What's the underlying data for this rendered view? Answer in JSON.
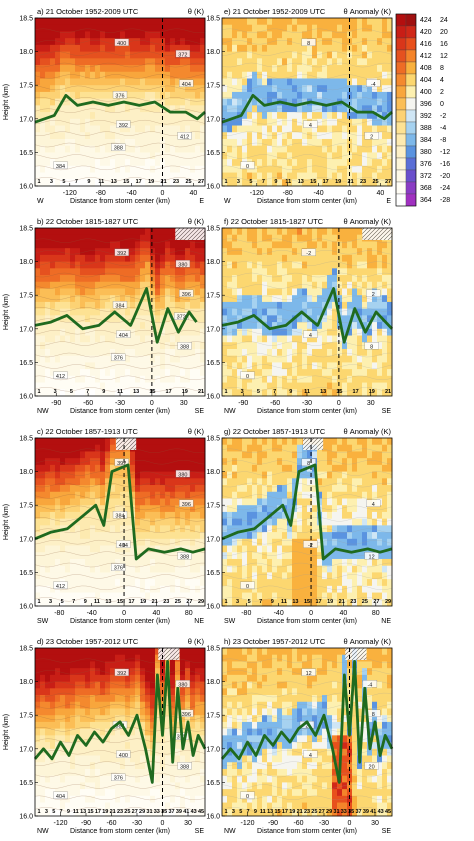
{
  "colorbar": {
    "left_values": [
      424,
      420,
      416,
      412,
      408,
      404,
      400,
      396,
      392,
      388,
      384,
      380,
      376,
      372,
      368,
      364
    ],
    "right_values": [
      24,
      20,
      16,
      12,
      8,
      4,
      2,
      0,
      -2,
      -4,
      -8,
      -12,
      -16,
      -20,
      -24,
      -28
    ],
    "colors": [
      "#b30f0f",
      "#c81e16",
      "#d9361a",
      "#e5511f",
      "#ee6c25",
      "#f4892e",
      "#f8a63c",
      "#fbbe56",
      "#fcd274",
      "#fde293",
      "#fdeab0",
      "#fdf0c6",
      "#fdf5d8",
      "#fef9e7",
      "#fffdf5",
      "#ffffff"
    ],
    "anomaly_colors": [
      "#a01010",
      "#d02818",
      "#e8501c",
      "#f4842a",
      "#f9b13e",
      "#fcd770",
      "#fdf0b0",
      "#f5f5f0",
      "#cfe6f5",
      "#a6d2f0",
      "#7db8ea",
      "#5a93e0",
      "#5a6ed6",
      "#6a4fcc",
      "#8a3cc4",
      "#a030c0"
    ]
  },
  "panels": [
    {
      "id": "a",
      "title": "a) 21 October 1952-2009 UTC",
      "var": "θ (K)",
      "kind": "theta",
      "left_dir": "W",
      "right_dir": "E",
      "xlabel": "Distance from storm center (km)",
      "xticks": [
        -120,
        -80,
        -40,
        0,
        40
      ],
      "xlim": [
        -165,
        55
      ],
      "ylabel": "Height (km)",
      "yticks": [
        "16.0",
        "16.5",
        "17.0",
        "17.5",
        "18.0",
        "18.5"
      ],
      "center_x": 0,
      "bottom_labels": [
        "1",
        "3",
        "5",
        "7",
        "9",
        "11",
        "13",
        "15",
        "17",
        "19",
        "21",
        "23",
        "25",
        "27"
      ],
      "tropopause": [
        [
          -165,
          16.95
        ],
        [
          -140,
          17.05
        ],
        [
          -125,
          17.35
        ],
        [
          -110,
          17.2
        ],
        [
          -90,
          17.25
        ],
        [
          -70,
          17.2
        ],
        [
          -50,
          17.25
        ],
        [
          -30,
          17.2
        ],
        [
          -10,
          17.25
        ],
        [
          10,
          17.1
        ],
        [
          30,
          17.1
        ],
        [
          45,
          17.0
        ],
        [
          55,
          17.1
        ]
      ],
      "hatch": [],
      "contour_labels": [
        "384",
        "392",
        "404",
        "400",
        "412",
        "376",
        "372",
        "388"
      ]
    },
    {
      "id": "e",
      "title": "e) 21 October 1952-2009 UTC",
      "var": "θ Anomaly (K)",
      "kind": "anom",
      "left_dir": "W",
      "right_dir": "E",
      "xlabel": "Distance from storm center (km)",
      "xticks": [
        -120,
        -80,
        -40,
        0,
        40
      ],
      "xlim": [
        -165,
        55
      ],
      "ylabel": "",
      "yticks": [
        "16.0",
        "16.5",
        "17.0",
        "17.5",
        "18.0",
        "18.5"
      ],
      "center_x": 0,
      "bottom_labels": [
        "1",
        "3",
        "5",
        "7",
        "9",
        "11",
        "13",
        "15",
        "17",
        "19",
        "21",
        "23",
        "25",
        "27"
      ],
      "tropopause": [
        [
          -165,
          16.95
        ],
        [
          -140,
          17.05
        ],
        [
          -125,
          17.35
        ],
        [
          -110,
          17.2
        ],
        [
          -90,
          17.25
        ],
        [
          -70,
          17.2
        ],
        [
          -50,
          17.25
        ],
        [
          -30,
          17.2
        ],
        [
          -10,
          17.25
        ],
        [
          10,
          17.1
        ],
        [
          30,
          17.1
        ],
        [
          45,
          17.0
        ],
        [
          55,
          17.1
        ]
      ],
      "hatch": [],
      "contour_labels": [
        "0",
        "4",
        "-4",
        "8",
        "2"
      ]
    },
    {
      "id": "b",
      "title": "b) 22 October 1815-1827 UTC",
      "var": "θ (K)",
      "kind": "theta",
      "left_dir": "NW",
      "right_dir": "SE",
      "xlabel": "Distance from storm center (km)",
      "xticks": [
        -90,
        -60,
        -30,
        0,
        30
      ],
      "xlim": [
        -110,
        50
      ],
      "ylabel": "Height (km)",
      "yticks": [
        "16.0",
        "16.5",
        "17.0",
        "17.5",
        "18.0",
        "18.5"
      ],
      "center_x": 0,
      "bottom_labels": [
        "1",
        "3",
        "5",
        "7",
        "9",
        "11",
        "13",
        "15",
        "17",
        "19",
        "21"
      ],
      "tropopause": [
        [
          -110,
          17.05
        ],
        [
          -95,
          17.1
        ],
        [
          -80,
          17.2
        ],
        [
          -65,
          17.0
        ],
        [
          -50,
          17.05
        ],
        [
          -35,
          17.25
        ],
        [
          -20,
          17.05
        ],
        [
          -5,
          17.6
        ],
        [
          5,
          16.8
        ],
        [
          15,
          17.3
        ],
        [
          25,
          16.95
        ],
        [
          35,
          17.25
        ],
        [
          42,
          17.1
        ]
      ],
      "hatch": [
        [
          22,
          50
        ]
      ],
      "contour_labels": [
        "412",
        "404",
        "396",
        "392",
        "388",
        "384",
        "380",
        "376",
        "372"
      ]
    },
    {
      "id": "f",
      "title": "f) 22 October 1815-1827 UTC",
      "var": "θ Anomaly (K)",
      "kind": "anom",
      "left_dir": "NW",
      "right_dir": "SE",
      "xlabel": "Distance from storm center (km)",
      "xticks": [
        -90,
        -60,
        -30,
        0,
        30
      ],
      "xlim": [
        -110,
        50
      ],
      "ylabel": "",
      "yticks": [
        "16.0",
        "16.5",
        "17.0",
        "17.5",
        "18.0",
        "18.5"
      ],
      "center_x": 0,
      "bottom_labels": [
        "1",
        "3",
        "5",
        "7",
        "9",
        "11",
        "13",
        "15",
        "17",
        "19",
        "21"
      ],
      "tropopause": [
        [
          -110,
          17.05
        ],
        [
          -95,
          17.1
        ],
        [
          -80,
          17.2
        ],
        [
          -65,
          17.0
        ],
        [
          -50,
          17.05
        ],
        [
          -35,
          17.25
        ],
        [
          -20,
          17.05
        ],
        [
          -5,
          17.6
        ],
        [
          5,
          16.8
        ],
        [
          15,
          17.3
        ],
        [
          25,
          16.95
        ],
        [
          35,
          17.25
        ],
        [
          50,
          17.0
        ]
      ],
      "hatch": [
        [
          22,
          50
        ]
      ],
      "contour_labels": [
        "0",
        "4",
        "2",
        "-2",
        "8"
      ]
    },
    {
      "id": "c",
      "title": "c) 22 October 1857-1913 UTC",
      "var": "θ (K)",
      "kind": "theta",
      "left_dir": "SW",
      "right_dir": "NE",
      "xlabel": "Distance from storm center (km)",
      "xticks": [
        -80,
        -40,
        0,
        40,
        80
      ],
      "xlim": [
        -110,
        100
      ],
      "ylabel": "Height (km)",
      "yticks": [
        "16.0",
        "16.5",
        "17.0",
        "17.5",
        "18.0",
        "18.5"
      ],
      "center_x": 0,
      "bottom_labels": [
        "1",
        "3",
        "5",
        "7",
        "9",
        "11",
        "13",
        "15",
        "17",
        "19",
        "21",
        "23",
        "25",
        "27",
        "29"
      ],
      "tropopause": [
        [
          -110,
          17.0
        ],
        [
          -90,
          17.1
        ],
        [
          -70,
          17.15
        ],
        [
          -50,
          17.35
        ],
        [
          -35,
          17.5
        ],
        [
          -25,
          17.2
        ],
        [
          -15,
          18.0
        ],
        [
          5,
          18.1
        ],
        [
          15,
          16.7
        ],
        [
          30,
          16.85
        ],
        [
          50,
          16.8
        ],
        [
          70,
          16.85
        ],
        [
          85,
          16.8
        ],
        [
          100,
          16.85
        ]
      ],
      "hatch": [
        [
          -10,
          15
        ]
      ],
      "contour_labels": [
        "412",
        "404",
        "396",
        "392",
        "388",
        "384",
        "380",
        "376"
      ]
    },
    {
      "id": "g",
      "title": "g) 22 October 1857-1913 UTC",
      "var": "θ Anomaly (K)",
      "kind": "anom",
      "left_dir": "SW",
      "right_dir": "NE",
      "xlabel": "Distance from storm center (km)",
      "xticks": [
        -80,
        -40,
        0,
        40,
        80
      ],
      "xlim": [
        -110,
        100
      ],
      "ylabel": "",
      "yticks": [
        "16.0",
        "16.5",
        "17.0",
        "17.5",
        "18.0",
        "18.5"
      ],
      "center_x": 0,
      "bottom_labels": [
        "1",
        "3",
        "5",
        "7",
        "9",
        "11",
        "13",
        "15",
        "17",
        "19",
        "21",
        "23",
        "25",
        "27",
        "29"
      ],
      "tropopause": [
        [
          -110,
          17.0
        ],
        [
          -90,
          17.1
        ],
        [
          -70,
          17.15
        ],
        [
          -50,
          17.35
        ],
        [
          -35,
          17.5
        ],
        [
          -25,
          17.2
        ],
        [
          -15,
          18.0
        ],
        [
          5,
          18.1
        ],
        [
          15,
          16.7
        ],
        [
          30,
          16.85
        ],
        [
          50,
          16.8
        ],
        [
          70,
          16.85
        ],
        [
          85,
          16.8
        ],
        [
          100,
          16.85
        ]
      ],
      "hatch": [
        [
          -10,
          15
        ]
      ],
      "contour_labels": [
        "0",
        "-2",
        "4",
        "8",
        "12"
      ]
    },
    {
      "id": "d",
      "title": "d) 23 October 1957-2012 UTC",
      "var": "θ (K)",
      "kind": "theta",
      "left_dir": "NW",
      "right_dir": "SE",
      "xlabel": "Distance from storm center (km)",
      "xticks": [
        -120,
        -90,
        -60,
        -30,
        0,
        30
      ],
      "xlim": [
        -150,
        50
      ],
      "ylabel": "Height (km)",
      "yticks": [
        "16.0",
        "16.5",
        "17.0",
        "17.5",
        "18.0",
        "18.5"
      ],
      "center_x": 0,
      "bottom_labels": [
        "1",
        "3",
        "5",
        "7",
        "9",
        "11",
        "13",
        "15",
        "17",
        "19",
        "21",
        "23",
        "25",
        "27",
        "29",
        "31",
        "33",
        "35",
        "37",
        "39",
        "41",
        "43",
        "45"
      ],
      "tropopause": [
        [
          -150,
          16.85
        ],
        [
          -140,
          17.0
        ],
        [
          -130,
          16.85
        ],
        [
          -120,
          17.1
        ],
        [
          -110,
          16.9
        ],
        [
          -100,
          17.2
        ],
        [
          -90,
          17.05
        ],
        [
          -80,
          17.25
        ],
        [
          -70,
          17.1
        ],
        [
          -60,
          17.3
        ],
        [
          -50,
          17.4
        ],
        [
          -40,
          17.2
        ],
        [
          -30,
          17.5
        ],
        [
          -20,
          17.0
        ],
        [
          -12,
          16.5
        ],
        [
          -6,
          18.1
        ],
        [
          0,
          17.2
        ],
        [
          6,
          18.3
        ],
        [
          12,
          16.8
        ],
        [
          18,
          17.9
        ],
        [
          24,
          17.0
        ],
        [
          30,
          17.4
        ],
        [
          36,
          16.9
        ],
        [
          42,
          17.2
        ],
        [
          50,
          17.0
        ]
      ],
      "hatch": [
        [
          -5,
          20
        ]
      ],
      "contour_labels": [
        "404",
        "400",
        "396",
        "392",
        "388",
        "384",
        "380",
        "376",
        "372"
      ]
    },
    {
      "id": "h",
      "title": "h) 23 October 1957-2012 UTC",
      "var": "θ Anomaly (K)",
      "kind": "anom",
      "left_dir": "NW",
      "right_dir": "SE",
      "xlabel": "Distance from storm center (km)",
      "xticks": [
        -120,
        -90,
        -60,
        -30,
        0,
        30
      ],
      "xlim": [
        -150,
        50
      ],
      "ylabel": "",
      "yticks": [
        "16.0",
        "16.5",
        "17.0",
        "17.5",
        "18.0",
        "18.5"
      ],
      "center_x": 0,
      "bottom_labels": [
        "1",
        "3",
        "5",
        "7",
        "9",
        "11",
        "13",
        "15",
        "17",
        "19",
        "21",
        "23",
        "25",
        "27",
        "29",
        "31",
        "33",
        "35",
        "37",
        "39",
        "41",
        "43",
        "45"
      ],
      "tropopause": [
        [
          -150,
          16.85
        ],
        [
          -140,
          17.0
        ],
        [
          -130,
          16.85
        ],
        [
          -120,
          17.1
        ],
        [
          -110,
          16.9
        ],
        [
          -100,
          17.2
        ],
        [
          -90,
          17.05
        ],
        [
          -80,
          17.25
        ],
        [
          -70,
          17.1
        ],
        [
          -60,
          17.3
        ],
        [
          -50,
          17.4
        ],
        [
          -40,
          17.2
        ],
        [
          -30,
          17.5
        ],
        [
          -20,
          17.0
        ],
        [
          -12,
          16.5
        ],
        [
          -6,
          18.1
        ],
        [
          0,
          17.2
        ],
        [
          6,
          18.3
        ],
        [
          12,
          16.8
        ],
        [
          18,
          17.9
        ],
        [
          24,
          17.0
        ],
        [
          30,
          17.4
        ],
        [
          36,
          16.9
        ],
        [
          42,
          17.2
        ],
        [
          50,
          17.0
        ]
      ],
      "hatch": [
        [
          -5,
          20
        ]
      ],
      "contour_labels": [
        "0",
        "4",
        "8",
        "12",
        "20",
        "2",
        "-4"
      ]
    }
  ],
  "chart_data": {
    "type": "heatmap",
    "description_free": true,
    "xlabel": "Distance from storm center (km)",
    "ylabel": "Height (km)",
    "ylim": [
      16.0,
      18.5
    ],
    "colorbar_theta_K": [
      424,
      420,
      416,
      412,
      408,
      404,
      400,
      396,
      392,
      388,
      384,
      380,
      376,
      372,
      368,
      364
    ],
    "colorbar_anomaly_K": [
      24,
      20,
      16,
      12,
      8,
      4,
      2,
      0,
      -2,
      -4,
      -8,
      -12,
      -16,
      -20,
      -24,
      -28
    ],
    "panels": [
      "a",
      "e",
      "b",
      "f",
      "c",
      "g",
      "d",
      "h"
    ]
  }
}
